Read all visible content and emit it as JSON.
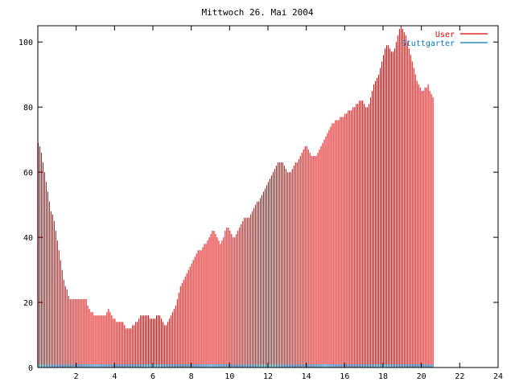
{
  "colors": {
    "user": "#dd0000",
    "stuttgarter": "#0077bb",
    "axis": "#000000",
    "background": "#ffffff"
  },
  "chart_data": {
    "type": "bar",
    "title": "Mittwoch 26. Mai 2004",
    "xlabel": "",
    "ylabel": "",
    "xlim": [
      0,
      24
    ],
    "ylim": [
      0,
      105
    ],
    "x_ticks": [
      2,
      4,
      6,
      8,
      10,
      12,
      14,
      16,
      18,
      20,
      22,
      24
    ],
    "y_ticks": [
      0,
      20,
      40,
      60,
      80,
      100
    ],
    "grid": false,
    "legend_placement": "top-right",
    "bin_minutes": 5,
    "series": [
      {
        "name": "User",
        "kind": "impulses",
        "color": "#dd0000",
        "values": [
          69,
          68,
          66,
          63,
          60,
          57,
          54,
          51,
          48,
          47,
          45,
          42,
          39,
          36,
          33,
          30,
          27,
          25,
          24,
          22,
          21,
          21,
          21,
          21,
          21,
          21,
          21,
          21,
          21,
          21,
          21,
          19,
          18,
          17,
          17,
          16,
          16,
          16,
          16,
          16,
          16,
          16,
          16,
          17,
          18,
          17,
          16,
          15,
          15,
          14,
          14,
          14,
          14,
          14,
          13,
          12,
          12,
          12,
          12,
          13,
          13,
          14,
          14,
          15,
          16,
          16,
          16,
          16,
          16,
          16,
          15,
          15,
          15,
          15,
          16,
          16,
          16,
          15,
          14,
          13,
          13,
          14,
          15,
          16,
          17,
          18,
          19,
          21,
          23,
          25,
          26,
          27,
          28,
          29,
          30,
          31,
          32,
          33,
          34,
          35,
          36,
          36,
          36,
          37,
          38,
          38,
          39,
          40,
          41,
          42,
          42,
          41,
          40,
          39,
          38,
          39,
          40,
          42,
          43,
          43,
          42,
          41,
          40,
          40,
          41,
          42,
          43,
          44,
          45,
          46,
          46,
          46,
          46,
          47,
          48,
          49,
          50,
          51,
          51,
          52,
          53,
          54,
          55,
          56,
          57,
          58,
          59,
          60,
          61,
          62,
          63,
          63,
          63,
          63,
          62,
          61,
          60,
          60,
          60,
          61,
          62,
          63,
          63,
          64,
          65,
          66,
          67,
          68,
          68,
          67,
          66,
          65,
          65,
          65,
          65,
          66,
          67,
          68,
          69,
          70,
          71,
          72,
          73,
          74,
          75,
          75,
          76,
          76,
          76,
          77,
          77,
          77,
          78,
          78,
          79,
          79,
          79,
          80,
          80,
          81,
          81,
          82,
          82,
          82,
          81,
          80,
          80,
          81,
          83,
          85,
          87,
          88,
          89,
          90,
          92,
          94,
          96,
          98,
          99,
          99,
          98,
          97,
          97,
          98,
          100,
          102,
          104,
          105,
          104,
          103,
          102,
          100,
          98,
          96,
          94,
          92,
          90,
          88,
          87,
          86,
          85,
          85,
          86,
          86,
          87,
          85,
          84,
          83
        ]
      },
      {
        "name": "Stuttgarter",
        "kind": "impulses",
        "color": "#0077bb",
        "values": [
          1,
          1,
          1,
          1,
          1,
          1,
          1,
          1,
          1,
          1,
          1,
          1,
          1,
          1,
          1,
          1,
          1,
          1,
          1,
          1,
          1,
          1,
          1,
          1,
          1,
          1,
          1,
          1,
          1,
          1,
          1,
          1,
          1,
          1,
          1,
          1,
          1,
          1,
          1,
          1,
          1,
          1,
          1,
          1,
          1,
          1,
          1,
          1,
          1,
          1,
          1,
          1,
          1,
          1,
          1,
          1,
          1,
          1,
          1,
          1,
          1,
          1,
          1,
          1,
          1,
          1,
          1,
          1,
          1,
          1,
          1,
          1,
          1,
          1,
          1,
          1,
          1,
          1,
          1,
          1,
          1,
          1,
          1,
          1,
          1,
          1,
          1,
          1,
          1,
          1,
          1,
          1,
          1,
          1,
          1,
          1,
          1,
          1,
          1,
          1,
          1,
          1,
          1,
          1,
          1,
          1,
          1,
          1,
          1,
          1,
          1,
          1,
          1,
          1,
          1,
          1,
          1,
          1,
          1,
          1,
          1,
          1,
          1,
          1,
          1,
          1,
          1,
          1,
          1,
          1,
          1,
          1,
          1,
          1,
          1,
          1,
          1,
          1,
          1,
          1,
          1,
          1,
          1,
          1,
          1,
          1,
          1,
          1,
          1,
          1,
          1,
          1,
          1,
          1,
          1,
          1,
          1,
          1,
          1,
          1,
          1,
          1,
          1,
          1,
          1,
          1,
          1,
          1,
          1,
          1,
          1,
          1,
          1,
          1,
          1,
          1,
          1,
          1,
          1,
          1,
          1,
          1,
          1,
          1,
          1,
          1,
          1,
          1,
          1,
          1,
          1,
          1,
          1,
          1,
          1,
          1,
          1,
          1,
          1,
          1,
          1,
          1,
          1,
          1,
          1,
          1,
          1,
          1,
          1,
          1,
          1,
          1,
          1,
          1,
          1,
          1,
          1,
          1,
          1,
          1,
          1,
          1,
          1,
          1,
          1,
          1,
          1,
          1,
          1,
          1,
          1,
          1,
          1,
          1,
          1,
          1,
          1,
          1,
          1,
          1,
          1,
          1,
          1,
          1,
          1,
          1,
          1,
          1
        ]
      }
    ]
  }
}
